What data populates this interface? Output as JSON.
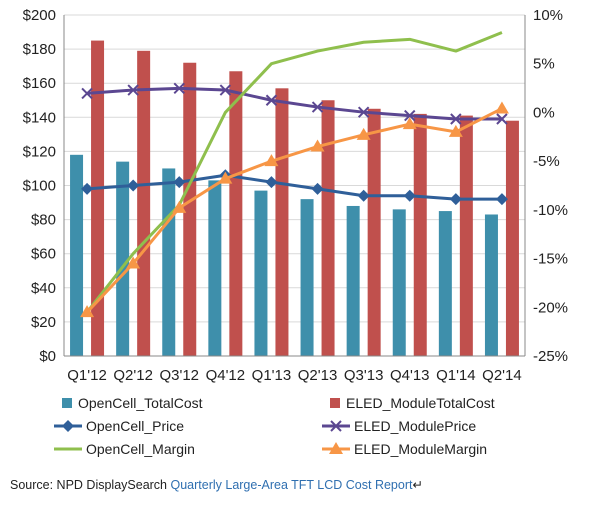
{
  "chart_data": {
    "type": "bar",
    "categories": [
      "Q1'12",
      "Q2'12",
      "Q3'12",
      "Q4'12",
      "Q1'13",
      "Q2'13",
      "Q3'13",
      "Q4'13",
      "Q1'14",
      "Q2'14"
    ],
    "left_axis": {
      "ticks": [
        "$0",
        "$20",
        "$40",
        "$60",
        "$80",
        "$100",
        "$120",
        "$140",
        "$160",
        "$180",
        "$200"
      ],
      "range": [
        0,
        200
      ]
    },
    "right_axis": {
      "ticks": [
        "-25%",
        "-20%",
        "-15%",
        "-10%",
        "-5%",
        "0%",
        "5%",
        "10%"
      ],
      "range": [
        -25,
        10
      ]
    },
    "grid": "horizontal",
    "legend_position": "bottom",
    "series": [
      {
        "name": "OpenCell_TotalCost",
        "kind": "bar",
        "axis": "left",
        "color": "#3e8fab",
        "values": [
          118,
          114,
          110,
          103,
          97,
          92,
          88,
          86,
          85,
          83
        ]
      },
      {
        "name": "ELED_ModuleTotalCost",
        "kind": "bar",
        "axis": "left",
        "color": "#c0504d",
        "values": [
          185,
          179,
          172,
          167,
          157,
          150,
          145,
          142,
          141,
          138
        ]
      },
      {
        "name": "OpenCell_Price",
        "kind": "line",
        "axis": "left",
        "color": "#2f5f99",
        "marker": "diamond",
        "values": [
          98,
          100,
          102,
          106,
          102,
          98,
          94,
          94,
          92,
          92
        ]
      },
      {
        "name": "ELED_ModulePrice",
        "kind": "line",
        "axis": "left",
        "color": "#5b4791",
        "marker": "x",
        "values": [
          154,
          156,
          157,
          156,
          150,
          146,
          143,
          141,
          139,
          139
        ]
      },
      {
        "name": "OpenCell_Margin",
        "kind": "line",
        "axis": "right",
        "color": "#8fbf4d",
        "marker": "none",
        "values": [
          -20.5,
          -14.5,
          -9.5,
          0,
          5,
          6.3,
          7.2,
          7.5,
          6.3,
          8.2
        ]
      },
      {
        "name": "ELED_ModuleMargin",
        "kind": "line",
        "axis": "right",
        "color": "#f79646",
        "marker": "triangle",
        "values": [
          -20.5,
          -15.5,
          -9.8,
          -6.8,
          -5,
          -3.5,
          -2.3,
          -1.2,
          -2,
          0.4
        ]
      }
    ]
  },
  "source": {
    "prefix": "Source: NPD DisplaySearch ",
    "link_text": "Quarterly Large-Area TFT LCD Cost Report",
    "suffix": "↵"
  }
}
